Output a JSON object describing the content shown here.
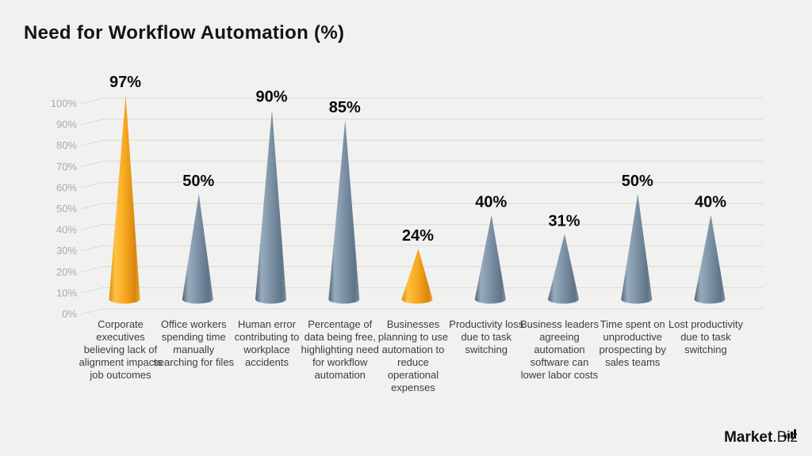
{
  "page": {
    "background": "#f1f1ef"
  },
  "header": {
    "title": "Need for Workflow Automation (%)"
  },
  "chart_data": {
    "type": "bar",
    "variant": "3d-cone",
    "title": "Need for Workflow Automation (%)",
    "categories": [
      "Corporate executives believing lack of alignment impacts job outcomes",
      "Office workers spending time manually searching for files",
      "Human error contributing to workplace accidents",
      "Percentage of data being free, highlighting need for workflow automation",
      "Businesses planning to use automation to reduce operational expenses",
      "Productivity loss due to task switching",
      "Business leaders agreeing automation software can lower labor costs",
      "Time spent on unproductive prospecting by sales teams",
      "Lost productivity due to task switching"
    ],
    "values": [
      97,
      50,
      90,
      85,
      24,
      40,
      31,
      50,
      40
    ],
    "value_labels": [
      "97%",
      "50%",
      "90%",
      "85%",
      "24%",
      "40%",
      "31%",
      "50%",
      "40%"
    ],
    "highlight_indices": [
      0,
      4
    ],
    "yticks": [
      "0%",
      "10%",
      "20%",
      "30%",
      "40%",
      "50%",
      "60%",
      "70%",
      "80%",
      "90%",
      "100%"
    ],
    "ylim": [
      0,
      100
    ],
    "ytick_step": 10,
    "grid": true,
    "legend": false,
    "colors": {
      "cone_highlight": "#f6a81c",
      "cone_default": "#7d92a6",
      "grid": "#d9d9d6",
      "tick_text": "#a9aaab",
      "value_text": "#0b0b0b",
      "category_text": "#3d3d3d"
    }
  },
  "footer": {
    "logo_bold": "Market",
    "logo_light": ".Biz",
    "logo_icon": "bar-chart-icon"
  }
}
